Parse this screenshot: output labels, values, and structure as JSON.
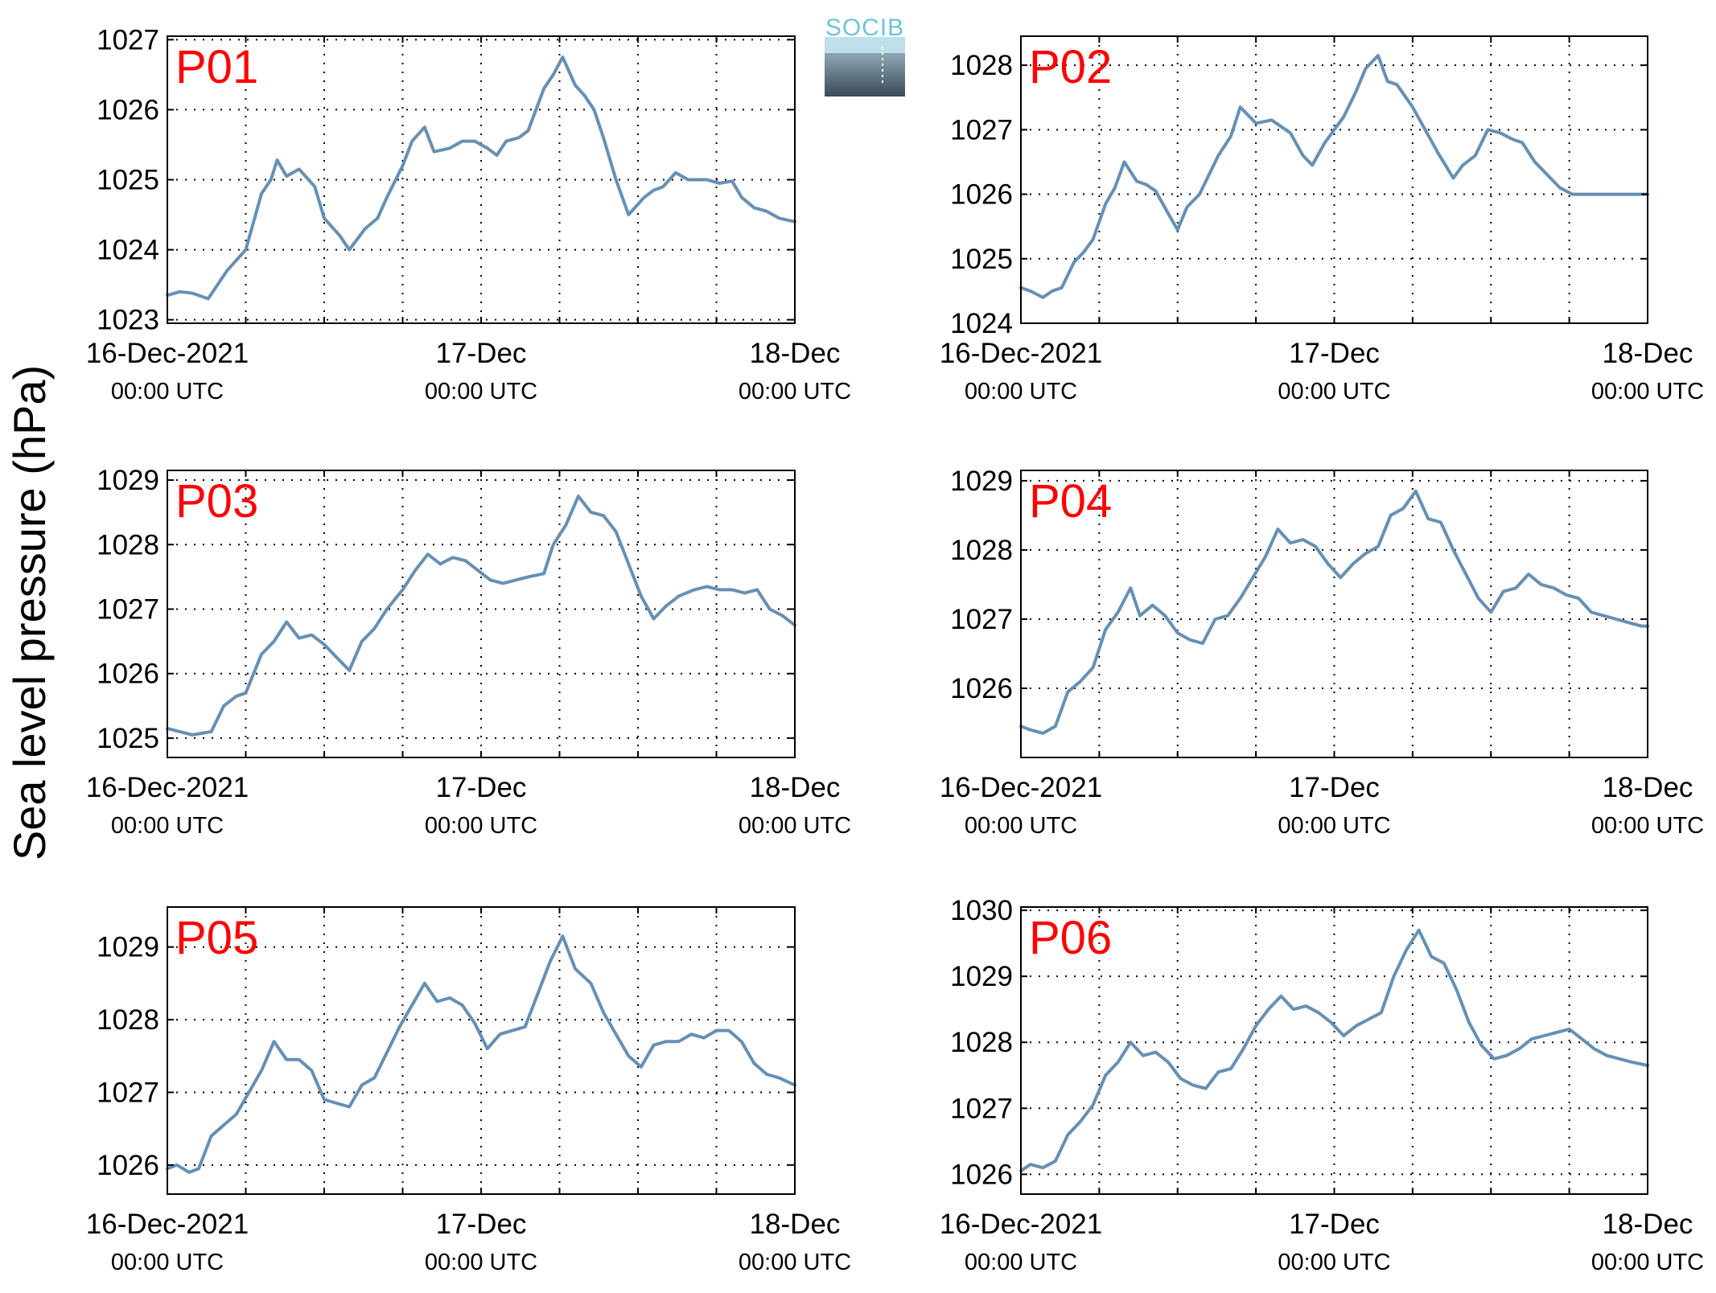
{
  "figure": {
    "ylabel": "Sea level pressure (hPa)",
    "logo_text": "SOCIB",
    "line_color": "#6690b4",
    "label_color": "#ff0000"
  },
  "x_ticks": [
    {
      "day": 0,
      "label": "16-Dec-2021",
      "sub": "00:00 UTC"
    },
    {
      "day": 1,
      "label": "17-Dec",
      "sub": "00:00 UTC"
    },
    {
      "day": 2,
      "label": "18-Dec",
      "sub": "00:00 UTC"
    }
  ],
  "chart_data": [
    {
      "type": "line",
      "label": "P01",
      "xlim": [
        0,
        2
      ],
      "ylim": [
        1022.95,
        1027.05
      ],
      "yticks": [
        1023,
        1024,
        1025,
        1026,
        1027
      ],
      "grid": true,
      "x": [
        0.0,
        0.04,
        0.08,
        0.13,
        0.19,
        0.25,
        0.3,
        0.33,
        0.35,
        0.38,
        0.42,
        0.47,
        0.5,
        0.55,
        0.58,
        0.63,
        0.67,
        0.7,
        0.75,
        0.78,
        0.82,
        0.85,
        0.9,
        0.94,
        0.98,
        1.02,
        1.05,
        1.08,
        1.12,
        1.15,
        1.2,
        1.23,
        1.26,
        1.3,
        1.33,
        1.36,
        1.39,
        1.43,
        1.47,
        1.52,
        1.55,
        1.58,
        1.62,
        1.66,
        1.72,
        1.76,
        1.8,
        1.83,
        1.87,
        1.91,
        1.95,
        2.0
      ],
      "y": [
        1023.35,
        1023.4,
        1023.38,
        1023.3,
        1023.7,
        1024.0,
        1024.8,
        1025.0,
        1025.28,
        1025.05,
        1025.15,
        1024.9,
        1024.45,
        1024.2,
        1024.0,
        1024.3,
        1024.45,
        1024.75,
        1025.2,
        1025.55,
        1025.75,
        1025.4,
        1025.45,
        1025.55,
        1025.55,
        1025.45,
        1025.35,
        1025.55,
        1025.6,
        1025.7,
        1026.3,
        1026.5,
        1026.75,
        1026.35,
        1026.2,
        1026.0,
        1025.6,
        1025.0,
        1024.5,
        1024.75,
        1024.85,
        1024.9,
        1025.1,
        1025.0,
        1025.0,
        1024.95,
        1024.98,
        1024.75,
        1024.6,
        1024.55,
        1024.45,
        1024.4
      ]
    },
    {
      "type": "line",
      "label": "P02",
      "xlim": [
        0,
        2
      ],
      "ylim": [
        1024.0,
        1028.45
      ],
      "yticks": [
        1024,
        1025,
        1026,
        1027,
        1028
      ],
      "grid": true,
      "x": [
        0.0,
        0.03,
        0.07,
        0.1,
        0.13,
        0.17,
        0.2,
        0.23,
        0.27,
        0.3,
        0.33,
        0.37,
        0.4,
        0.43,
        0.47,
        0.5,
        0.53,
        0.57,
        0.6,
        0.63,
        0.67,
        0.7,
        0.75,
        0.8,
        0.83,
        0.86,
        0.9,
        0.93,
        0.97,
        1.0,
        1.03,
        1.07,
        1.1,
        1.14,
        1.17,
        1.2,
        1.25,
        1.29,
        1.33,
        1.38,
        1.41,
        1.45,
        1.49,
        1.53,
        1.57,
        1.6,
        1.64,
        1.68,
        1.72,
        1.76,
        1.8,
        1.84,
        1.88,
        1.92,
        1.96,
        2.0
      ],
      "y": [
        1024.55,
        1024.5,
        1024.4,
        1024.5,
        1024.55,
        1024.95,
        1025.1,
        1025.3,
        1025.85,
        1026.1,
        1026.5,
        1026.2,
        1026.15,
        1026.05,
        1025.7,
        1025.45,
        1025.8,
        1026.0,
        1026.3,
        1026.6,
        1026.9,
        1027.35,
        1027.1,
        1027.15,
        1027.05,
        1026.95,
        1026.6,
        1026.45,
        1026.8,
        1027.0,
        1027.2,
        1027.6,
        1027.95,
        1028.15,
        1027.75,
        1027.7,
        1027.35,
        1027.0,
        1026.65,
        1026.25,
        1026.45,
        1026.6,
        1027.0,
        1026.95,
        1026.85,
        1026.8,
        1026.5,
        1026.3,
        1026.1,
        1026.0,
        1026.0,
        1026.0,
        1026.0,
        1026.0,
        1026.0,
        1026.0
      ]
    },
    {
      "type": "line",
      "label": "P03",
      "xlim": [
        0,
        2
      ],
      "ylim": [
        1024.7,
        1029.15
      ],
      "yticks": [
        1025,
        1026,
        1027,
        1028,
        1029
      ],
      "grid": true,
      "x": [
        0.0,
        0.04,
        0.08,
        0.14,
        0.18,
        0.22,
        0.25,
        0.3,
        0.34,
        0.38,
        0.42,
        0.46,
        0.5,
        0.55,
        0.58,
        0.62,
        0.66,
        0.7,
        0.75,
        0.79,
        0.83,
        0.87,
        0.91,
        0.95,
        0.99,
        1.03,
        1.07,
        1.11,
        1.15,
        1.2,
        1.23,
        1.27,
        1.31,
        1.35,
        1.39,
        1.43,
        1.47,
        1.51,
        1.55,
        1.59,
        1.63,
        1.68,
        1.72,
        1.76,
        1.8,
        1.84,
        1.88,
        1.92,
        1.96,
        2.0
      ],
      "y": [
        1025.15,
        1025.1,
        1025.05,
        1025.1,
        1025.5,
        1025.65,
        1025.7,
        1026.3,
        1026.5,
        1026.8,
        1026.55,
        1026.6,
        1026.45,
        1026.2,
        1026.05,
        1026.5,
        1026.7,
        1027.0,
        1027.3,
        1027.6,
        1027.85,
        1027.7,
        1027.8,
        1027.75,
        1027.6,
        1027.45,
        1027.4,
        1027.45,
        1027.5,
        1027.55,
        1028.0,
        1028.3,
        1028.75,
        1028.5,
        1028.45,
        1028.2,
        1027.7,
        1027.2,
        1026.85,
        1027.05,
        1027.2,
        1027.3,
        1027.35,
        1027.3,
        1027.3,
        1027.25,
        1027.3,
        1027.0,
        1026.9,
        1026.75
      ]
    },
    {
      "type": "line",
      "label": "P04",
      "xlim": [
        0,
        2
      ],
      "ylim": [
        1025.0,
        1029.15
      ],
      "yticks": [
        1026,
        1027,
        1028,
        1029
      ],
      "grid": true,
      "x": [
        0.0,
        0.03,
        0.07,
        0.11,
        0.15,
        0.19,
        0.23,
        0.27,
        0.31,
        0.35,
        0.38,
        0.42,
        0.46,
        0.5,
        0.54,
        0.58,
        0.62,
        0.66,
        0.7,
        0.74,
        0.78,
        0.82,
        0.86,
        0.9,
        0.94,
        0.98,
        1.02,
        1.06,
        1.1,
        1.14,
        1.18,
        1.22,
        1.26,
        1.3,
        1.34,
        1.38,
        1.42,
        1.46,
        1.5,
        1.54,
        1.58,
        1.62,
        1.66,
        1.7,
        1.74,
        1.78,
        1.82,
        1.86,
        1.9,
        1.94,
        1.98,
        2.0
      ],
      "y": [
        1025.45,
        1025.4,
        1025.35,
        1025.45,
        1025.95,
        1026.1,
        1026.3,
        1026.85,
        1027.1,
        1027.45,
        1027.05,
        1027.2,
        1027.05,
        1026.8,
        1026.7,
        1026.65,
        1027.0,
        1027.05,
        1027.3,
        1027.6,
        1027.9,
        1028.3,
        1028.1,
        1028.15,
        1028.05,
        1027.8,
        1027.6,
        1027.8,
        1027.95,
        1028.05,
        1028.5,
        1028.6,
        1028.85,
        1028.45,
        1028.4,
        1028.0,
        1027.65,
        1027.3,
        1027.1,
        1027.4,
        1027.45,
        1027.65,
        1027.5,
        1027.45,
        1027.35,
        1027.3,
        1027.1,
        1027.05,
        1027.0,
        1026.95,
        1026.9,
        1026.9
      ]
    },
    {
      "type": "line",
      "label": "P05",
      "xlim": [
        0,
        2
      ],
      "ylim": [
        1025.6,
        1029.55
      ],
      "yticks": [
        1026,
        1027,
        1028,
        1029
      ],
      "grid": true,
      "x": [
        0.0,
        0.03,
        0.07,
        0.1,
        0.14,
        0.18,
        0.22,
        0.26,
        0.3,
        0.34,
        0.38,
        0.42,
        0.46,
        0.5,
        0.54,
        0.58,
        0.62,
        0.66,
        0.7,
        0.74,
        0.78,
        0.82,
        0.86,
        0.9,
        0.94,
        0.98,
        1.02,
        1.06,
        1.1,
        1.14,
        1.18,
        1.22,
        1.26,
        1.3,
        1.35,
        1.39,
        1.43,
        1.47,
        1.51,
        1.55,
        1.59,
        1.63,
        1.67,
        1.71,
        1.75,
        1.79,
        1.83,
        1.87,
        1.91,
        1.95,
        2.0
      ],
      "y": [
        1025.95,
        1026.0,
        1025.9,
        1025.95,
        1026.4,
        1026.55,
        1026.7,
        1027.0,
        1027.3,
        1027.7,
        1027.45,
        1027.45,
        1027.3,
        1026.9,
        1026.85,
        1026.8,
        1027.1,
        1027.2,
        1027.55,
        1027.9,
        1028.2,
        1028.5,
        1028.25,
        1028.3,
        1028.2,
        1027.95,
        1027.6,
        1027.8,
        1027.85,
        1027.9,
        1028.35,
        1028.8,
        1029.15,
        1028.7,
        1028.5,
        1028.1,
        1027.8,
        1027.5,
        1027.35,
        1027.65,
        1027.7,
        1027.7,
        1027.8,
        1027.75,
        1027.85,
        1027.85,
        1027.7,
        1027.4,
        1027.25,
        1027.2,
        1027.1
      ]
    },
    {
      "type": "line",
      "label": "P06",
      "xlim": [
        0,
        2
      ],
      "ylim": [
        1025.7,
        1030.05
      ],
      "yticks": [
        1026,
        1027,
        1028,
        1029,
        1030
      ],
      "grid": true,
      "x": [
        0.0,
        0.03,
        0.07,
        0.11,
        0.15,
        0.19,
        0.23,
        0.27,
        0.31,
        0.35,
        0.39,
        0.43,
        0.47,
        0.51,
        0.55,
        0.59,
        0.63,
        0.67,
        0.71,
        0.75,
        0.79,
        0.83,
        0.87,
        0.91,
        0.95,
        0.99,
        1.03,
        1.07,
        1.11,
        1.15,
        1.19,
        1.23,
        1.27,
        1.31,
        1.35,
        1.39,
        1.43,
        1.47,
        1.51,
        1.55,
        1.59,
        1.63,
        1.67,
        1.71,
        1.75,
        1.79,
        1.83,
        1.87,
        1.91,
        1.95,
        2.0
      ],
      "y": [
        1026.05,
        1026.15,
        1026.1,
        1026.2,
        1026.6,
        1026.8,
        1027.05,
        1027.5,
        1027.7,
        1028.0,
        1027.8,
        1027.85,
        1027.7,
        1027.45,
        1027.35,
        1027.3,
        1027.55,
        1027.6,
        1027.9,
        1028.25,
        1028.5,
        1028.7,
        1028.5,
        1028.55,
        1028.45,
        1028.3,
        1028.1,
        1028.25,
        1028.35,
        1028.45,
        1029.0,
        1029.4,
        1029.7,
        1029.3,
        1029.2,
        1028.8,
        1028.3,
        1027.95,
        1027.75,
        1027.8,
        1027.9,
        1028.05,
        1028.1,
        1028.15,
        1028.2,
        1028.05,
        1027.9,
        1027.8,
        1027.75,
        1027.7,
        1027.65
      ]
    }
  ]
}
